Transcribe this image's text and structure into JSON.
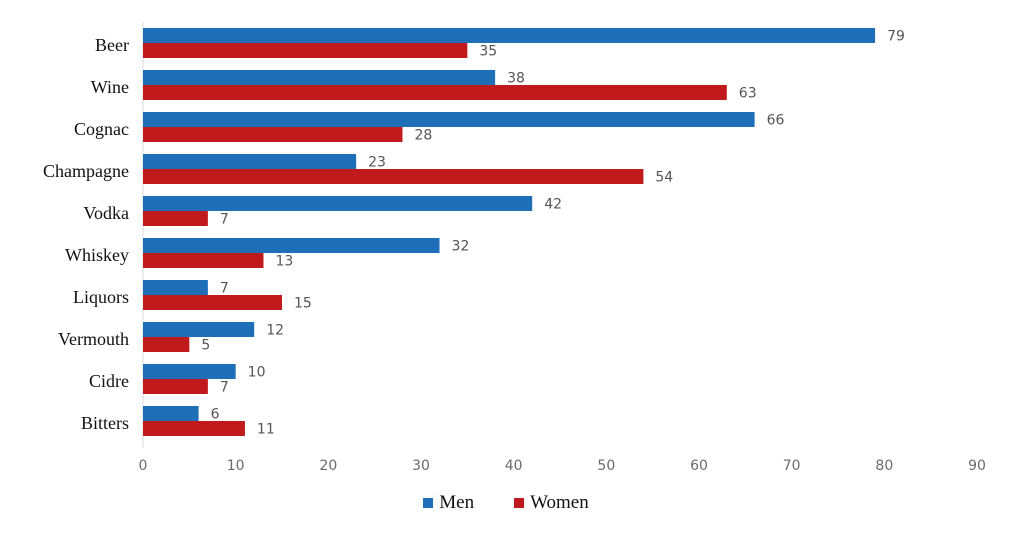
{
  "chart_data": {
    "type": "bar",
    "orientation": "horizontal",
    "categories": [
      "Beer",
      "Wine",
      "Cognac",
      "Champagne",
      "Vodka",
      "Whiskey",
      "Liquors",
      "Vermouth",
      "Cidre",
      "Bitters"
    ],
    "series": [
      {
        "name": "Men",
        "color": "#1f6fb8",
        "values": [
          79,
          38,
          66,
          23,
          42,
          32,
          7,
          12,
          10,
          6
        ]
      },
      {
        "name": "Women",
        "color": "#c11a1c",
        "values": [
          35,
          63,
          28,
          54,
          7,
          13,
          15,
          5,
          7,
          11
        ]
      }
    ],
    "xlim": [
      0,
      90
    ],
    "xticks": [
      "0",
      "10",
      "20",
      "30",
      "40",
      "50",
      "60",
      "70",
      "80",
      "90"
    ],
    "grid": false,
    "legend_position": "bottom"
  }
}
